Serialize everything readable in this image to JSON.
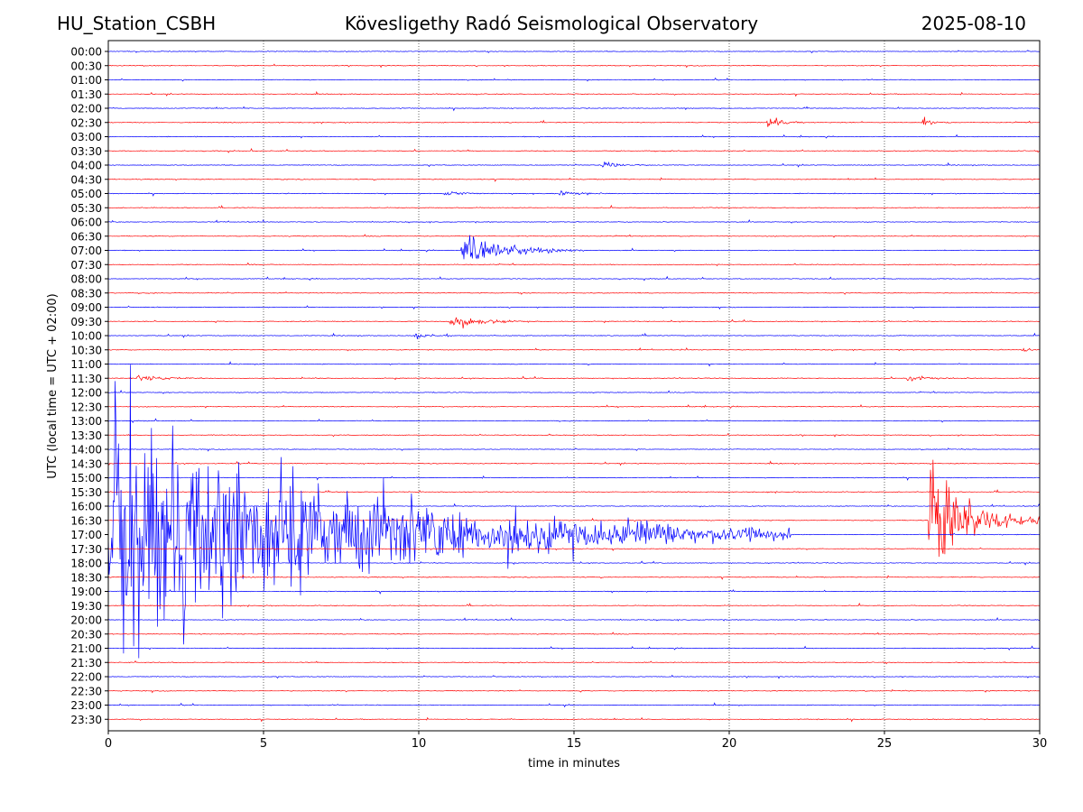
{
  "header": {
    "station": "HU_Station_CSBH",
    "observatory": "Kövesligethy Radó Seismological Observatory",
    "date": "2025-08-10"
  },
  "colors": {
    "hour_trace": "#0000ff",
    "half_hour_trace": "#ff0000",
    "grid": "#000000",
    "background": "#ffffff"
  },
  "chart_data": {
    "type": "line",
    "title": "Kövesligethy Radó Seismological Observatory",
    "xlabel": "time in minutes",
    "ylabel": "UTC (local time = UTC + 02:00)",
    "xlim": [
      0,
      30
    ],
    "x_ticks": [
      0,
      5,
      10,
      15,
      20,
      25,
      30
    ],
    "x_grid": "dotted vertical lines at each x tick",
    "y_tick_labels": [
      "00:00",
      "00:30",
      "01:00",
      "01:30",
      "02:00",
      "02:30",
      "03:00",
      "03:30",
      "04:00",
      "04:30",
      "05:00",
      "05:30",
      "06:00",
      "06:30",
      "07:00",
      "07:30",
      "08:00",
      "08:30",
      "09:00",
      "09:30",
      "10:00",
      "10:30",
      "11:00",
      "11:30",
      "12:00",
      "12:30",
      "13:00",
      "13:30",
      "14:00",
      "14:30",
      "15:00",
      "15:30",
      "16:00",
      "16:30",
      "17:00",
      "17:30",
      "18:00",
      "18:30",
      "19:00",
      "19:30",
      "20:00",
      "20:30",
      "21:00",
      "21:30",
      "22:00",
      "22:30",
      "23:00",
      "23:30"
    ],
    "trace_colors": "alternating blue (full hour) and red (half hour)",
    "events": [
      {
        "row": "02:30",
        "start_min": 21.2,
        "duration_min": 1.3,
        "amplitude_rows": 0.45
      },
      {
        "row": "02:30",
        "start_min": 26.2,
        "duration_min": 1.0,
        "amplitude_rows": 0.35
      },
      {
        "row": "04:00",
        "start_min": 15.8,
        "duration_min": 1.6,
        "amplitude_rows": 0.3
      },
      {
        "row": "05:00",
        "start_min": 10.8,
        "duration_min": 1.6,
        "amplitude_rows": 0.3
      },
      {
        "row": "05:00",
        "start_min": 14.5,
        "duration_min": 1.8,
        "amplitude_rows": 0.25
      },
      {
        "row": "07:00",
        "start_min": 11.35,
        "duration_min": 4.0,
        "amplitude_rows": 1.5
      },
      {
        "row": "09:30",
        "start_min": 10.95,
        "duration_min": 2.6,
        "amplitude_rows": 0.7
      },
      {
        "row": "10:00",
        "start_min": 9.85,
        "duration_min": 1.2,
        "amplitude_rows": 0.35
      },
      {
        "row": "10:30",
        "start_min": 29.4,
        "duration_min": 0.6,
        "amplitude_rows": 0.4
      },
      {
        "row": "11:30",
        "start_min": 0.9,
        "duration_min": 2.2,
        "amplitude_rows": 0.35
      },
      {
        "row": "11:30",
        "start_min": 25.7,
        "duration_min": 1.6,
        "amplitude_rows": 0.35
      },
      {
        "row": "17:00",
        "start_min": 0.0,
        "duration_min": 22.0,
        "amplitude_rows": 11.0
      },
      {
        "row": "16:30",
        "start_min": 26.4,
        "duration_min": 3.6,
        "amplitude_rows": 6.5
      }
    ]
  }
}
